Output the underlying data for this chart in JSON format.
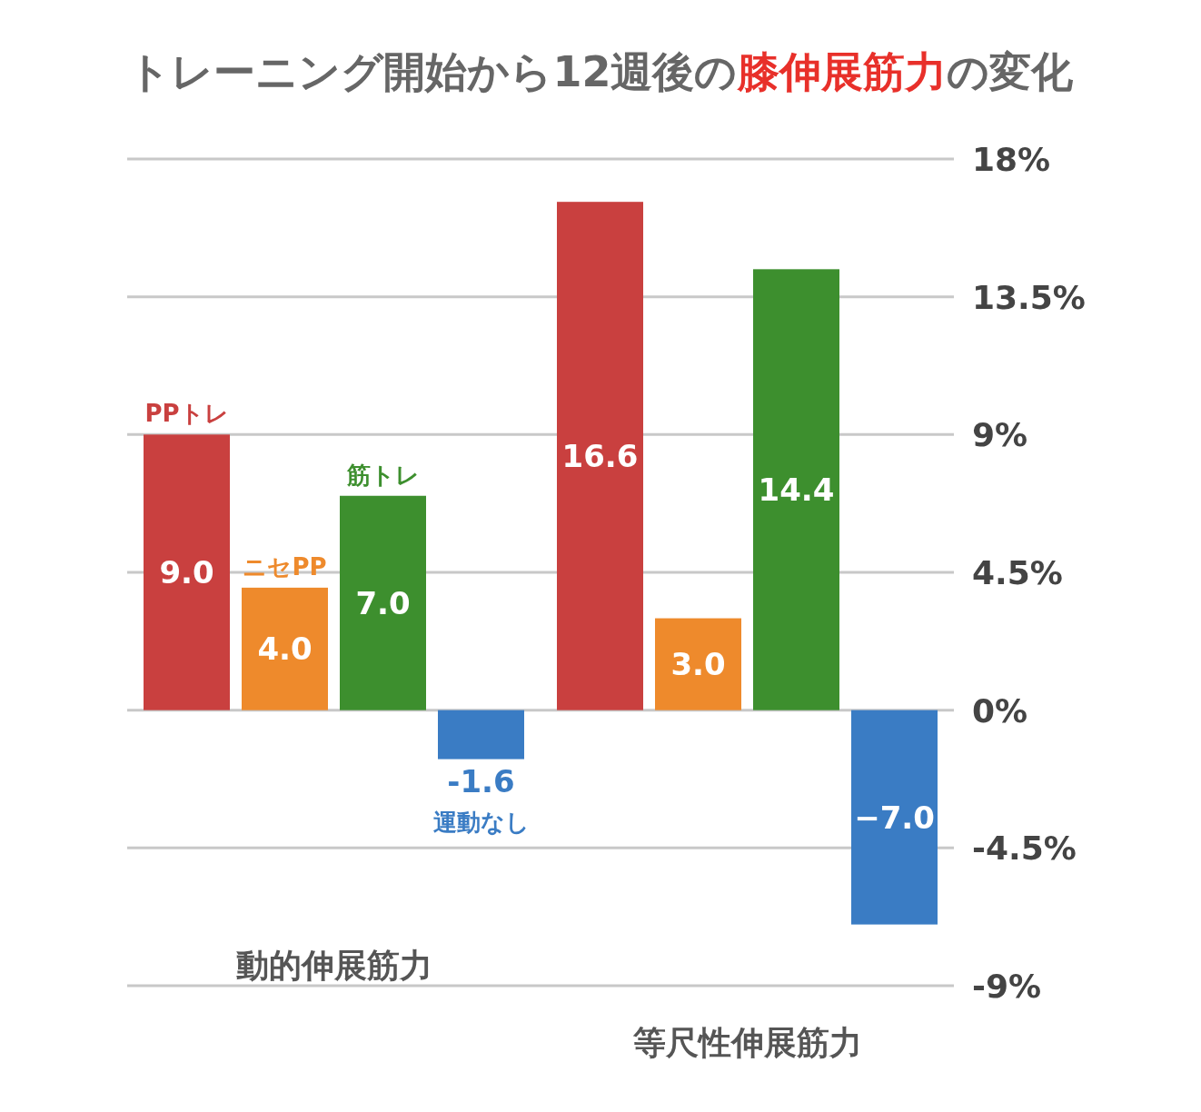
{
  "chart_data": {
    "type": "bar",
    "title": "トレーニング開始から12週後の**膝伸展筋力**の変化",
    "categories": [
      "動的伸展筋力",
      "等尺性伸展筋力"
    ],
    "series": [
      {
        "name": "PPトレ",
        "color": "#c9403f",
        "values": [
          9.0,
          16.6
        ],
        "value_labels": [
          "9.0",
          "16.6"
        ]
      },
      {
        "name": "ニセPP",
        "color": "#ee8a2c",
        "values": [
          4.0,
          3.0
        ],
        "value_labels": [
          "4.0",
          "3.0"
        ]
      },
      {
        "name": "筋トレ",
        "color": "#3d8f2e",
        "values": [
          7.0,
          14.4
        ],
        "value_labels": [
          "7.0",
          "14.4"
        ]
      },
      {
        "name": "運動なし",
        "color": "#3a7cc4",
        "values": [
          -1.6,
          -7.0
        ],
        "value_labels": [
          "-1.6",
          "−7.0"
        ]
      }
    ],
    "ylim": [
      -9,
      18
    ],
    "yticks": [
      {
        "value": 18,
        "label": "18%"
      },
      {
        "value": 13.5,
        "label": "13.5%"
      },
      {
        "value": 9,
        "label": "9%"
      },
      {
        "value": 4.5,
        "label": "4.5%"
      },
      {
        "value": 0,
        "label": "0%"
      },
      {
        "value": -4.5,
        "label": "-4.5%"
      },
      {
        "value": -9,
        "label": "-9%"
      }
    ],
    "grid": "y"
  }
}
